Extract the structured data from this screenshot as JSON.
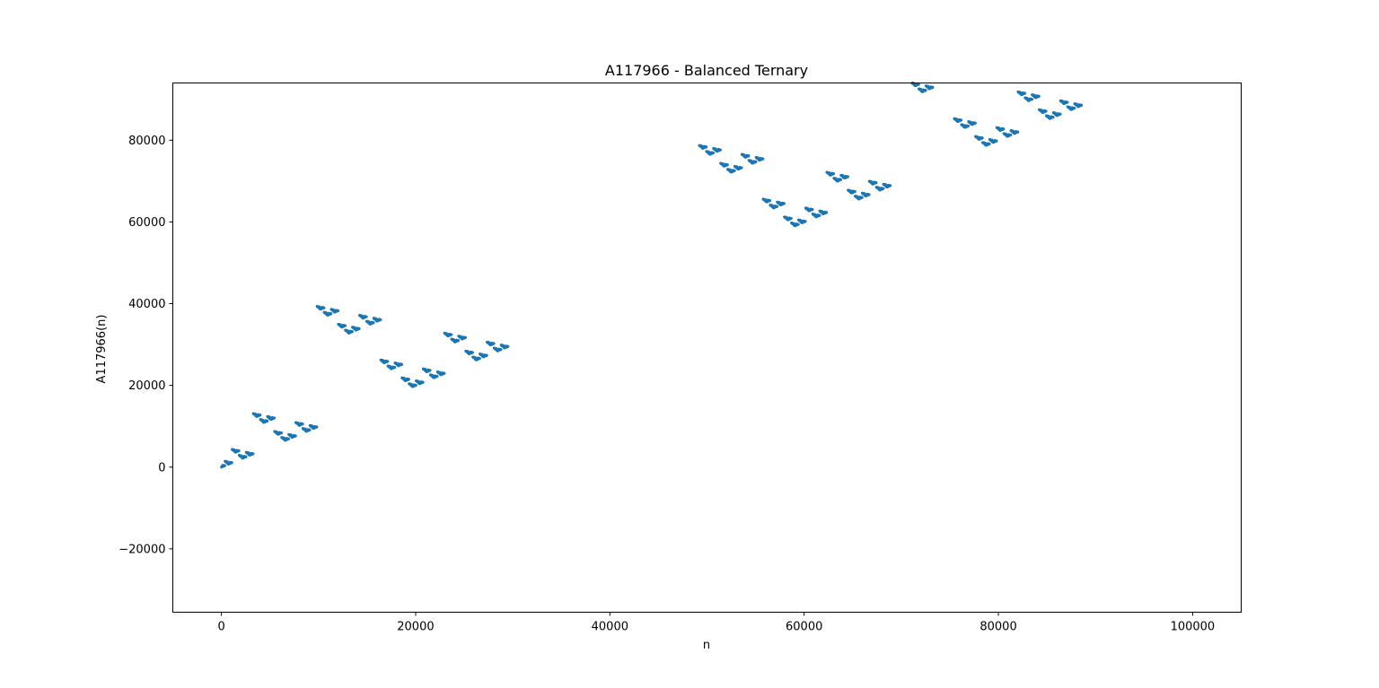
{
  "chart_data": {
    "type": "scatter",
    "title": "A117966 - Balanced Ternary",
    "xlabel": "n",
    "ylabel": "A117966(n)",
    "xlim": [
      -5000,
      105000
    ],
    "ylim": [
      -35500,
      94000
    ],
    "xticks": [
      0,
      20000,
      40000,
      60000,
      80000,
      100000
    ],
    "xtick_labels": [
      "0",
      "20000",
      "40000",
      "60000",
      "80000",
      "100000"
    ],
    "yticks": [
      -20000,
      0,
      20000,
      40000,
      60000,
      80000
    ],
    "ytick_labels": [
      "−20000",
      "0",
      "20000",
      "40000",
      "60000",
      "80000"
    ],
    "grid": false,
    "legend": "none",
    "marker_color": "#1f77b4",
    "series": [
      {
        "sequence": "balanced-ternary",
        "n_min": 0,
        "n_max": 100000,
        "sample_step": 9
      }
    ]
  }
}
